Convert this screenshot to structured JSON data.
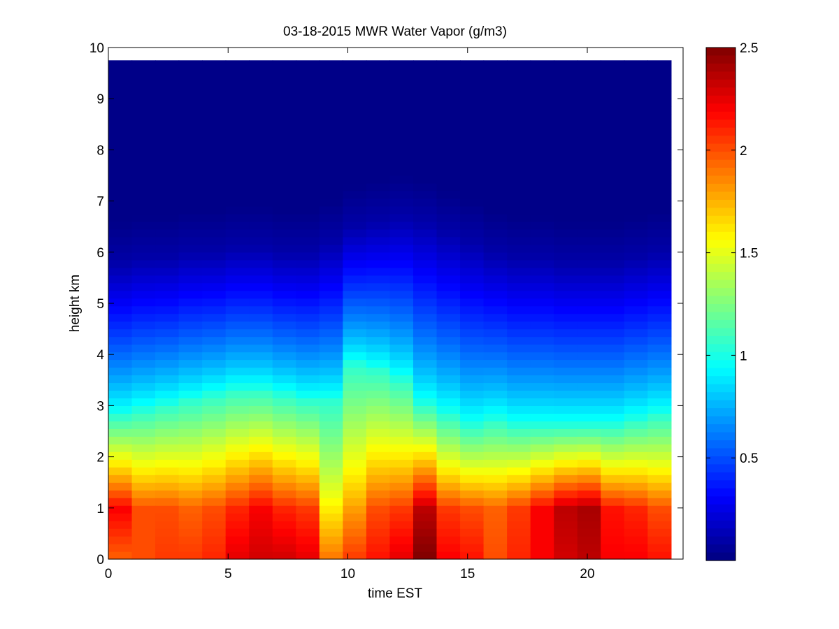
{
  "chart_data": {
    "type": "heatmap",
    "title": "03-18-2015 MWR Water Vapor (g/m3)",
    "xlabel": "time EST",
    "ylabel": "height km",
    "xlim": [
      0,
      24
    ],
    "ylim": [
      0,
      10
    ],
    "x_ticks": [
      0,
      5,
      10,
      15,
      20
    ],
    "x_tick_labels": [
      "0",
      "5",
      "10",
      "15",
      "20"
    ],
    "y_ticks": [
      0,
      1,
      2,
      3,
      4,
      5,
      6,
      7,
      8,
      9,
      10
    ],
    "y_tick_labels": [
      "0",
      "1",
      "2",
      "3",
      "4",
      "5",
      "6",
      "7",
      "8",
      "9",
      "10"
    ],
    "colormap": "jet",
    "colorbar": {
      "range": [
        0,
        2.5
      ],
      "ticks": [
        0.5,
        1,
        1.5,
        2,
        2.5
      ],
      "tick_labels": [
        "0.5",
        "1",
        "1.5",
        "2",
        "2.5"
      ]
    },
    "grid": false,
    "time_bins": [
      0,
      1,
      2,
      3,
      4,
      5,
      6,
      7,
      8,
      9,
      10,
      11,
      12,
      13,
      14,
      15,
      16,
      17,
      18,
      19,
      20,
      21,
      22,
      23
    ],
    "data_extent": {
      "x": [
        0,
        23.5
      ],
      "y": [
        0,
        9.75
      ]
    },
    "surface_values": [
      1.95,
      2.0,
      2.05,
      2.05,
      2.1,
      2.25,
      2.3,
      2.3,
      2.25,
      1.9,
      2.05,
      2.15,
      2.25,
      2.5,
      2.2,
      2.15,
      2.0,
      2.1,
      2.2,
      2.3,
      2.35,
      2.2,
      2.2,
      2.15
    ],
    "peak_values": [
      2.2,
      2.0,
      2.0,
      1.95,
      2.0,
      2.1,
      2.2,
      2.1,
      2.05,
      1.6,
      1.8,
      2.0,
      2.05,
      2.35,
      2.05,
      2.0,
      1.95,
      2.05,
      2.2,
      2.35,
      2.4,
      2.15,
      2.1,
      2.0
    ],
    "moist_layer_top_km": [
      2.8,
      2.9,
      3.0,
      3.1,
      3.2,
      3.3,
      3.3,
      3.2,
      3.1,
      3.1,
      3.8,
      3.7,
      3.5,
      3.0,
      2.8,
      2.6,
      2.7,
      2.6,
      2.6,
      2.6,
      2.6,
      2.6,
      2.7,
      2.8
    ],
    "dry_level_km": [
      5.8,
      5.9,
      5.9,
      6.0,
      6.0,
      6.1,
      6.1,
      6.0,
      6.0,
      6.2,
      6.5,
      6.6,
      6.7,
      6.6,
      6.4,
      6.2,
      6.0,
      5.9,
      5.9,
      5.8,
      5.8,
      5.8,
      5.9,
      6.0
    ],
    "background_value": 0.02
  }
}
